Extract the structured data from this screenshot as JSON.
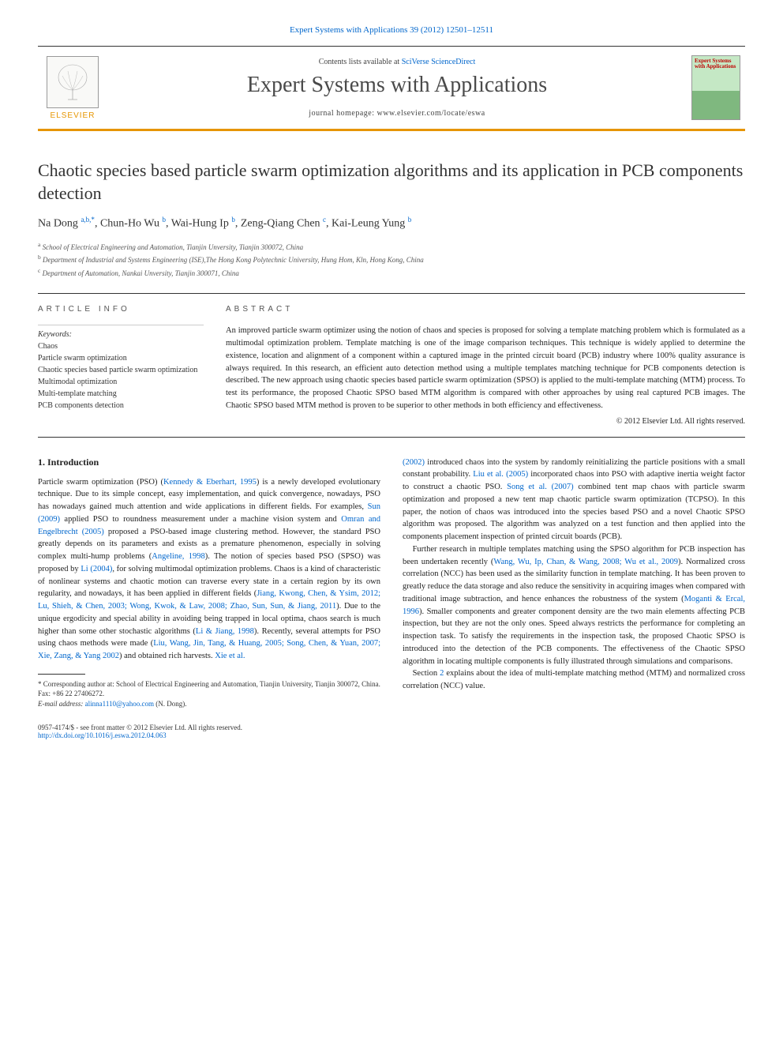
{
  "journal_ref_link": "Expert Systems with Applications 39 (2012) 12501–12511",
  "header": {
    "contents_prefix": "Contents lists available at ",
    "contents_link": "SciVerse ScienceDirect",
    "journal_title": "Expert Systems with Applications",
    "homepage_label": "journal homepage: www.elsevier.com/locate/eswa",
    "elsevier_label": "ELSEVIER",
    "cover_title": "Expert Systems with Applications"
  },
  "article": {
    "title": "Chaotic species based particle swarm optimization algorithms and its application in PCB components detection",
    "authors_html": "Na Dong <sup>a,b,*</sup>, Chun-Ho Wu <sup>b</sup>, Wai-Hung Ip <sup>b</sup>, Zeng-Qiang Chen <sup>c</sup>, Kai-Leung Yung <sup>b</sup>",
    "affiliations": [
      "a School of Electrical Engineering and Automation, Tianjin Unversity, Tianjin 300072, China",
      "b Department of Industrial and Systems Engineering (ISE),The Hong Kong Polytechnic University, Hung Hom, Kln, Hong Kong, China",
      "c Department of Automation, Nankai Unversity, Tianjin 300071, China"
    ]
  },
  "info": {
    "heading": "ARTICLE INFO",
    "keywords_label": "Keywords:",
    "keywords": [
      "Chaos",
      "Particle swarm optimization",
      "Chaotic species based particle swarm optimization",
      "Multimodal optimization",
      "Multi-template matching",
      "PCB components detection"
    ]
  },
  "abstract": {
    "heading": "ABSTRACT",
    "text": "An improved particle swarm optimizer using the notion of chaos and species is proposed for solving a template matching problem which is formulated as a multimodal optimization problem. Template matching is one of the image comparison techniques. This technique is widely applied to determine the existence, location and alignment of a component within a captured image in the printed circuit board (PCB) industry where 100% quality assurance is always required. In this research, an efficient auto detection method using a multiple templates matching technique for PCB components detection is described. The new approach using chaotic species based particle swarm optimization (SPSO) is applied to the multi-template matching (MTM) process. To test its performance, the proposed Chaotic SPSO based MTM algorithm is compared with other approaches by using real captured PCB images. The Chaotic SPSO based MTM method is proven to be superior to other methods in both efficiency and effectiveness.",
    "copyright": "© 2012 Elsevier Ltd. All rights reserved."
  },
  "body": {
    "section_heading": "1. Introduction",
    "left_html": "<p class=\"noindent\">Particle swarm optimization (PSO) (<a>Kennedy &amp; Eberhart, 1995</a>) is a newly developed evolutionary technique. Due to its simple concept, easy implementation, and quick convergence, nowadays, PSO has nowadays gained much attention and wide applications in different fields. For examples, <a>Sun (2009)</a> applied PSO to roundness measurement under a machine vision system and <a>Omran and Engelbrecht (2005)</a> proposed a PSO-based image clustering method. However, the standard PSO greatly depends on its parameters and exists as a premature phenomenon, especially in solving complex multi-hump problems (<a>Angeline, 1998</a>). The notion of species based PSO (SPSO) was proposed by <a>Li (2004)</a>, for solving multimodal optimization problems. Chaos is a kind of characteristic of nonlinear systems and chaotic motion can traverse every state in a certain region by its own regularity, and nowadays, it has been applied in different fields (<a>Jiang, Kwong, Chen, &amp; Ysim, 2012; Lu, Shieh, &amp; Chen, 2003; Wong, Kwok, &amp; Law, 2008; Zhao, Sun, Sun, &amp; Jiang, 2011</a>). Due to the unique ergodicity and special ability in avoiding being trapped in local optima, chaos search is much higher than some other stochastic algorithms (<a>Li &amp; Jiang, 1998</a>). Recently, several attempts for PSO using chaos methods were made (<a>Liu, Wang, Jin, Tang, &amp; Huang, 2005; Song, Chen, &amp; Yuan, 2007; Xie, Zang, &amp; Yang 2002</a>) and obtained rich harvests. <a>Xie et al.</a></p>",
    "right_html": "<p class=\"noindent\"><a>(2002)</a> introduced chaos into the system by randomly reinitializing the particle positions with a small constant probability. <a>Liu et al. (2005)</a> incorporated chaos into PSO with adaptive inertia weight factor to construct a chaotic PSO. <a>Song et al. (2007)</a> combined tent map chaos with particle swarm optimization and proposed a new tent map chaotic particle swarm optimization (TCPSO). In this paper, the notion of chaos was introduced into the species based PSO and a novel Chaotic SPSO algorithm was proposed. The algorithm was analyzed on a test function and then applied into the components placement inspection of printed circuit boards (PCB).</p><p>Further research in multiple templates matching using the SPSO algorithm for PCB inspection has been undertaken recently (<a>Wang, Wu, Ip, Chan, &amp; Wang, 2008; Wu et al., 2009</a>). Normalized cross correlation (NCC) has been used as the similarity function in template matching. It has been proven to greatly reduce the data storage and also reduce the sensitivity in acquiring images when compared with traditional image subtraction, and hence enhances the robustness of the system (<a>Moganti &amp; Ercal, 1996</a>). Smaller components and greater component density are the two main elements affecting PCB inspection, but they are not the only ones. Speed always restricts the performance for completing an inspection task. To satisfy the requirements in the inspection task, the proposed Chaotic SPSO is introduced into the detection of the PCB components. The effectiveness of the Chaotic SPSO algorithm in locating multiple components is fully illustrated through simulations and comparisons.</p><p>Section <a>2</a> explains about the idea of multi-template matching method (MTM) and normalized cross correlation (NCC) value.</p>"
  },
  "footnote": {
    "corr": "* Corresponding author at: School of Electrical Engineering and Automation, Tianjin University, Tianjin 300072, China. Fax: +86 22 27406272.",
    "email_label": "E-mail address:",
    "email": "alinna1110@yahoo.com",
    "email_suffix": "(N. Dong)."
  },
  "footer": {
    "issn": "0957-4174/$ - see front matter © 2012 Elsevier Ltd. All rights reserved.",
    "doi": "http://dx.doi.org/10.1016/j.eswa.2012.04.063"
  },
  "colors": {
    "link": "#0066cc",
    "rule": "#e69500",
    "text": "#222222"
  }
}
